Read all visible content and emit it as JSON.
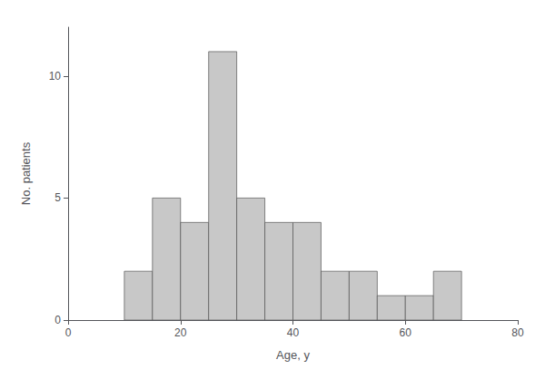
{
  "chart_data": {
    "type": "histogram",
    "bins": [
      10,
      15,
      20,
      25,
      30,
      35,
      40,
      45,
      50,
      55,
      60,
      65,
      70
    ],
    "values": [
      2,
      5,
      4,
      11,
      5,
      4,
      4,
      2,
      2,
      1,
      1,
      2
    ],
    "color": "#c8c8c8",
    "xlabel": "Age, y",
    "ylabel": "No. patients",
    "xlim": [
      0,
      80
    ],
    "xticks": [
      0,
      20,
      40,
      60,
      80
    ],
    "ylim": [
      0,
      12
    ],
    "yticks": [
      0,
      5,
      10
    ],
    "grid": false
  }
}
